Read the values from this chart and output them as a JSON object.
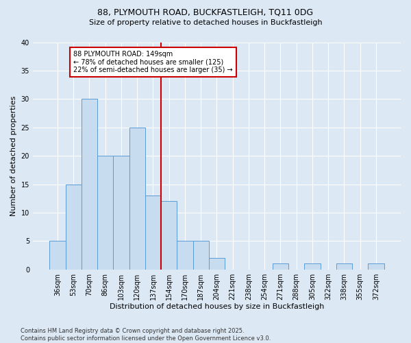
{
  "title1": "88, PLYMOUTH ROAD, BUCKFASTLEIGH, TQ11 0DG",
  "title2": "Size of property relative to detached houses in Buckfastleigh",
  "xlabel": "Distribution of detached houses by size in Buckfastleigh",
  "ylabel": "Number of detached properties",
  "bin_labels": [
    "36sqm",
    "53sqm",
    "70sqm",
    "86sqm",
    "103sqm",
    "120sqm",
    "137sqm",
    "154sqm",
    "170sqm",
    "187sqm",
    "204sqm",
    "221sqm",
    "238sqm",
    "254sqm",
    "271sqm",
    "288sqm",
    "305sqm",
    "322sqm",
    "338sqm",
    "355sqm",
    "372sqm"
  ],
  "bar_heights": [
    5,
    15,
    30,
    20,
    20,
    25,
    13,
    12,
    5,
    5,
    2,
    0,
    0,
    0,
    1,
    0,
    1,
    0,
    1,
    0,
    1
  ],
  "bar_color": "#c8dcf0",
  "bar_edge_color": "#5b9bd5",
  "subject_line_index": 7,
  "annotation_text": "88 PLYMOUTH ROAD: 149sqm\n← 78% of detached houses are smaller (125)\n22% of semi-detached houses are larger (35) →",
  "annotation_box_color": "#ffffff",
  "annotation_box_edge": "#cc0000",
  "vline_color": "#cc0000",
  "background_color": "#dce8f4",
  "plot_bg_color": "#dce8f4",
  "grid_color": "#ffffff",
  "footer": "Contains HM Land Registry data © Crown copyright and database right 2025.\nContains public sector information licensed under the Open Government Licence v3.0.",
  "ylim": [
    0,
    40
  ],
  "yticks": [
    0,
    5,
    10,
    15,
    20,
    25,
    30,
    35,
    40
  ],
  "title1_fontsize": 9,
  "title2_fontsize": 8,
  "xlabel_fontsize": 8,
  "ylabel_fontsize": 8,
  "tick_fontsize": 7,
  "annotation_fontsize": 7,
  "footer_fontsize": 6
}
